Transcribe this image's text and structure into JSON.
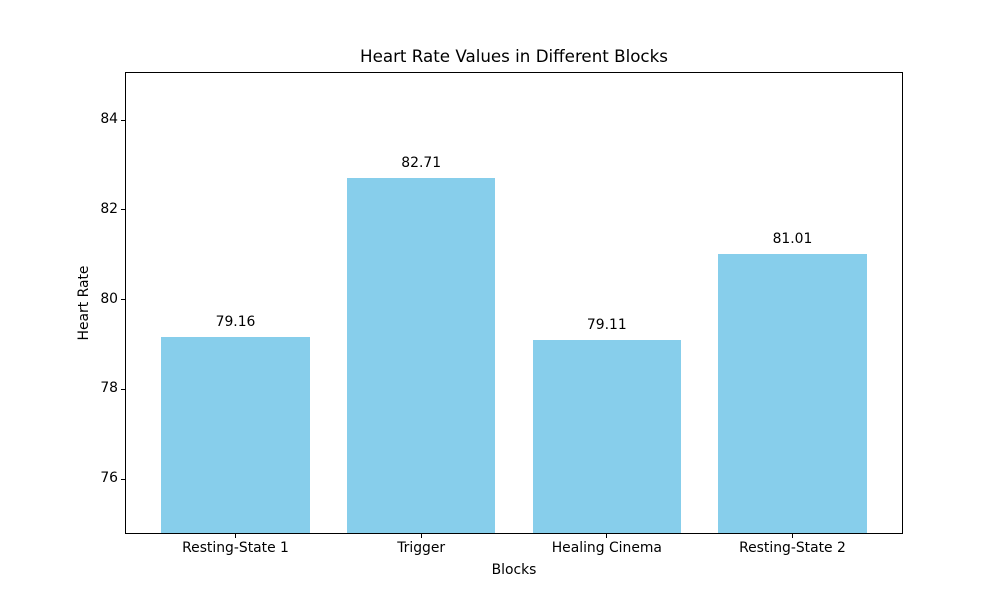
{
  "figure": {
    "background": "#ffffff"
  },
  "chart_data": {
    "type": "bar",
    "title": "Heart Rate Values in Different Blocks",
    "xlabel": "Blocks",
    "ylabel": "Heart Rate",
    "categories": [
      "Resting-State 1",
      "Trigger",
      "Healing Cinema",
      "Resting-State 2"
    ],
    "values": [
      79.16,
      82.71,
      79.11,
      81.01
    ],
    "bar_labels": [
      "79.16",
      "82.71",
      "79.11",
      "81.01"
    ],
    "bar_color": "#87ceeb",
    "axis_color": "#000000",
    "text_color": "#000000",
    "yticks": [
      76,
      78,
      80,
      82,
      84
    ],
    "ylim": [
      74.8,
      85.05
    ],
    "xlim": [
      -0.59,
      3.59
    ],
    "bar_width": 0.8,
    "grid": false,
    "legend": "none"
  }
}
